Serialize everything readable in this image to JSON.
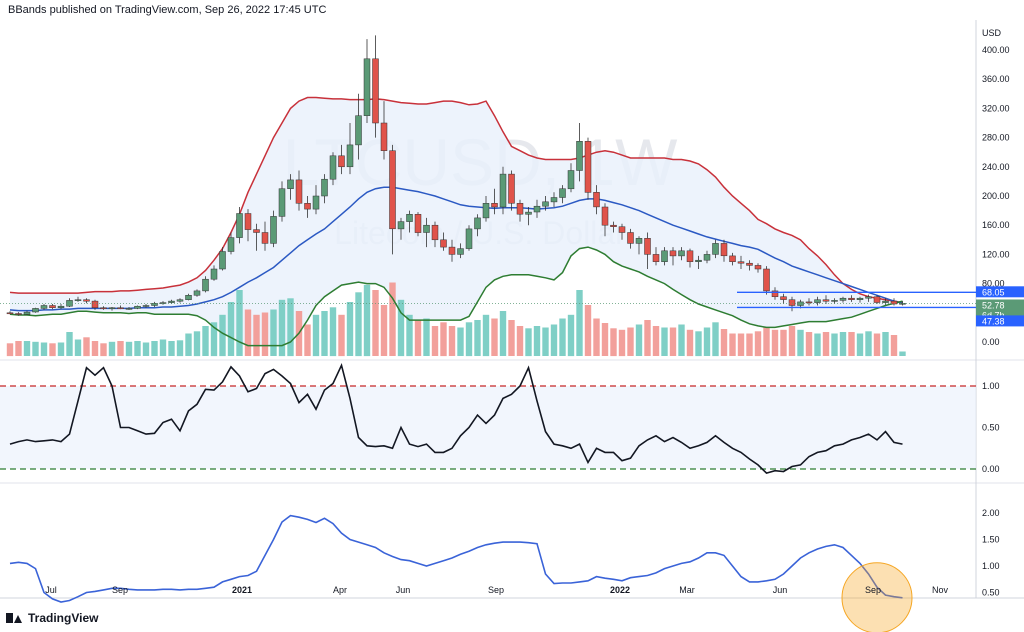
{
  "header": {
    "attribution": "BBands published on TradingView.com, Sep 26, 2022 17:45 UTC"
  },
  "footer": {
    "brand": "TradingView",
    "logo_icon": "tradingview-logo-icon"
  },
  "colors": {
    "bull": "#5b9a76",
    "bear": "#e0534a",
    "upper_band": "#c8313a",
    "lower_band": "#2e7d32",
    "basis": "#2b59c3",
    "vol_up": "#7fcfc6",
    "vol_down": "#f2a09b",
    "band_fill": "#e9f0fb",
    "level_red": "#c62828",
    "level_green": "#2e7d32",
    "osc": "#3a63d8",
    "price_box": "#2962ff"
  },
  "chart_data": {
    "type": "candlestick",
    "symbol_watermark": "LTCUSD, 1W",
    "name_watermark": "Litecoin / U.S. Dollar",
    "price_axis": {
      "unit": "USD",
      "ticks": [
        "400.00",
        "360.00",
        "320.00",
        "280.00",
        "240.00",
        "200.00",
        "160.00",
        "120.00",
        "80.00",
        "40.00",
        "0.00"
      ]
    },
    "price_labels": [
      {
        "text": "68.05",
        "kind": "box-high"
      },
      {
        "text": "52.78",
        "kind": "last-price"
      },
      {
        "text": "6d 7h",
        "kind": "countdown"
      },
      {
        "text": "47.38",
        "kind": "box-low"
      }
    ],
    "x_axis_labels": [
      "Jul",
      "Sep",
      "2021",
      "Apr",
      "Jun",
      "Sep",
      "2022",
      "Mar",
      "Jun",
      "Sep",
      "Nov"
    ],
    "candles_ohlc": [
      [
        40,
        42,
        38,
        39
      ],
      [
        39,
        41,
        36,
        38
      ],
      [
        38,
        43,
        37,
        41
      ],
      [
        41,
        47,
        40,
        46
      ],
      [
        46,
        52,
        44,
        50
      ],
      [
        50,
        52,
        45,
        47
      ],
      [
        47,
        52,
        45,
        49
      ],
      [
        49,
        60,
        48,
        57
      ],
      [
        57,
        62,
        55,
        58
      ],
      [
        58,
        60,
        53,
        56
      ],
      [
        56,
        58,
        44,
        47
      ],
      [
        47,
        49,
        44,
        46
      ],
      [
        46,
        48,
        43,
        47
      ],
      [
        47,
        50,
        45,
        46
      ],
      [
        46,
        48,
        44,
        46
      ],
      [
        46,
        50,
        45,
        49
      ],
      [
        49,
        52,
        47,
        50
      ],
      [
        50,
        55,
        48,
        53
      ],
      [
        53,
        56,
        51,
        54
      ],
      [
        54,
        58,
        52,
        56
      ],
      [
        56,
        60,
        54,
        58
      ],
      [
        58,
        66,
        57,
        64
      ],
      [
        64,
        72,
        62,
        70
      ],
      [
        70,
        90,
        68,
        86
      ],
      [
        86,
        105,
        84,
        100
      ],
      [
        100,
        130,
        98,
        124
      ],
      [
        124,
        150,
        120,
        143
      ],
      [
        143,
        185,
        135,
        176
      ],
      [
        176,
        182,
        138,
        154
      ],
      [
        154,
        162,
        125,
        150
      ],
      [
        150,
        165,
        125,
        135
      ],
      [
        135,
        180,
        130,
        172
      ],
      [
        172,
        220,
        165,
        210
      ],
      [
        210,
        230,
        195,
        222
      ],
      [
        222,
        235,
        180,
        190
      ],
      [
        190,
        200,
        170,
        182
      ],
      [
        182,
        215,
        175,
        200
      ],
      [
        200,
        230,
        190,
        223
      ],
      [
        223,
        260,
        215,
        255
      ],
      [
        255,
        270,
        230,
        240
      ],
      [
        240,
        300,
        230,
        270
      ],
      [
        270,
        340,
        250,
        310
      ],
      [
        310,
        415,
        300,
        388
      ],
      [
        388,
        420,
        280,
        300
      ],
      [
        300,
        330,
        250,
        262
      ],
      [
        262,
        270,
        120,
        155
      ],
      [
        155,
        170,
        140,
        165
      ],
      [
        165,
        180,
        150,
        175
      ],
      [
        175,
        178,
        145,
        150
      ],
      [
        150,
        170,
        130,
        160
      ],
      [
        160,
        165,
        130,
        140
      ],
      [
        140,
        150,
        125,
        130
      ],
      [
        130,
        140,
        110,
        120
      ],
      [
        120,
        135,
        115,
        128
      ],
      [
        128,
        160,
        125,
        155
      ],
      [
        155,
        175,
        145,
        170
      ],
      [
        170,
        200,
        165,
        190
      ],
      [
        190,
        210,
        175,
        185
      ],
      [
        185,
        240,
        175,
        230
      ],
      [
        230,
        235,
        180,
        190
      ],
      [
        190,
        195,
        165,
        175
      ],
      [
        175,
        185,
        160,
        178
      ],
      [
        178,
        195,
        170,
        186
      ],
      [
        186,
        200,
        180,
        192
      ],
      [
        192,
        205,
        185,
        198
      ],
      [
        198,
        215,
        190,
        210
      ],
      [
        210,
        245,
        205,
        235
      ],
      [
        235,
        300,
        220,
        275
      ],
      [
        275,
        280,
        195,
        205
      ],
      [
        205,
        215,
        175,
        185
      ],
      [
        185,
        190,
        145,
        160
      ],
      [
        160,
        165,
        150,
        158
      ],
      [
        158,
        162,
        140,
        150
      ],
      [
        150,
        155,
        128,
        135
      ],
      [
        135,
        145,
        120,
        142
      ],
      [
        142,
        150,
        100,
        120
      ],
      [
        120,
        130,
        105,
        110
      ],
      [
        110,
        130,
        105,
        125
      ],
      [
        125,
        130,
        105,
        118
      ],
      [
        118,
        130,
        112,
        125
      ],
      [
        125,
        128,
        102,
        110
      ],
      [
        110,
        118,
        100,
        112
      ],
      [
        112,
        125,
        108,
        120
      ],
      [
        120,
        140,
        115,
        135
      ],
      [
        135,
        140,
        110,
        118
      ],
      [
        118,
        122,
        105,
        110
      ],
      [
        110,
        118,
        100,
        108
      ],
      [
        108,
        112,
        98,
        105
      ],
      [
        105,
        108,
        95,
        100
      ],
      [
        100,
        104,
        65,
        70
      ],
      [
        70,
        75,
        58,
        62
      ],
      [
        62,
        66,
        52,
        58
      ],
      [
        58,
        62,
        42,
        50
      ],
      [
        50,
        58,
        46,
        55
      ],
      [
        55,
        60,
        50,
        54
      ],
      [
        54,
        62,
        50,
        58
      ],
      [
        58,
        64,
        52,
        56
      ],
      [
        56,
        60,
        52,
        57
      ],
      [
        57,
        62,
        54,
        60
      ],
      [
        60,
        64,
        55,
        58
      ],
      [
        58,
        62,
        54,
        60
      ],
      [
        60,
        65,
        55,
        62
      ],
      [
        62,
        64,
        52,
        54
      ],
      [
        54,
        60,
        51,
        56
      ],
      [
        56,
        60,
        50,
        52
      ],
      [
        52,
        56,
        50,
        53
      ]
    ],
    "bollinger_basis": [
      44,
      43,
      43,
      43,
      44,
      44,
      45,
      45,
      46,
      46,
      46,
      46,
      46,
      46,
      46,
      47,
      47,
      47,
      48,
      48,
      49,
      50,
      52,
      55,
      58,
      62,
      68,
      75,
      82,
      88,
      95,
      102,
      112,
      122,
      132,
      140,
      148,
      155,
      165,
      175,
      185,
      196,
      205,
      210,
      212,
      212,
      210,
      208,
      206,
      203,
      200,
      196,
      192,
      188,
      186,
      185,
      184,
      183,
      184,
      184,
      184,
      183,
      182,
      183,
      184,
      186,
      190,
      194,
      196,
      196,
      194,
      191,
      188,
      184,
      180,
      175,
      170,
      165,
      160,
      156,
      152,
      148,
      144,
      141,
      138,
      135,
      132,
      130,
      127,
      121,
      115,
      110,
      104,
      100,
      96,
      92,
      88,
      84,
      80,
      76,
      72,
      68,
      64,
      60,
      56,
      53
    ],
    "bollinger_upper": [
      68,
      67,
      67,
      67,
      67,
      67,
      67,
      67,
      67,
      68,
      69,
      69,
      69,
      70,
      70,
      71,
      72,
      73,
      74,
      76,
      78,
      82,
      88,
      98,
      112,
      128,
      150,
      175,
      205,
      230,
      255,
      280,
      300,
      320,
      330,
      335,
      335,
      334,
      333,
      333,
      332,
      332,
      332,
      333,
      332,
      330,
      328,
      327,
      326,
      326,
      328,
      330,
      330,
      328,
      325,
      326,
      330,
      310,
      288,
      268,
      262,
      256,
      252,
      250,
      250,
      250,
      250,
      252,
      256,
      260,
      262,
      260,
      256,
      252,
      252,
      252,
      252,
      252,
      250,
      250,
      248,
      244,
      236,
      226,
      212,
      200,
      190,
      180,
      168,
      162,
      155,
      150,
      146,
      140,
      128,
      118,
      106,
      92,
      80,
      72,
      66,
      62,
      60,
      58,
      56,
      54
    ],
    "bollinger_lower": [
      38,
      37,
      37,
      36,
      37,
      38,
      38,
      40,
      42,
      42,
      41,
      40,
      40,
      40,
      39,
      40,
      40,
      38,
      38,
      38,
      38,
      38,
      36,
      30,
      20,
      12,
      6,
      0,
      -5,
      -5,
      -5,
      -5,
      -5,
      0,
      12,
      30,
      50,
      62,
      70,
      78,
      80,
      82,
      80,
      80,
      75,
      60,
      40,
      30,
      30,
      30,
      30,
      30,
      30,
      30,
      35,
      55,
      75,
      85,
      90,
      92,
      92,
      92,
      90,
      88,
      85,
      95,
      118,
      128,
      130,
      126,
      120,
      110,
      104,
      100,
      96,
      90,
      85,
      80,
      72,
      65,
      58,
      52,
      48,
      44,
      40,
      36,
      30,
      25,
      22,
      20,
      20,
      22,
      24,
      26,
      28,
      28,
      28,
      30,
      32,
      34,
      38,
      42,
      46,
      50,
      53,
      56
    ],
    "volume_relative": [
      0.17,
      0.2,
      0.2,
      0.19,
      0.18,
      0.17,
      0.18,
      0.32,
      0.22,
      0.25,
      0.2,
      0.17,
      0.19,
      0.2,
      0.19,
      0.2,
      0.18,
      0.2,
      0.22,
      0.2,
      0.21,
      0.3,
      0.33,
      0.4,
      0.45,
      0.55,
      0.72,
      0.88,
      0.62,
      0.55,
      0.58,
      0.62,
      0.75,
      0.77,
      0.6,
      0.42,
      0.55,
      0.6,
      0.65,
      0.55,
      0.72,
      0.85,
      0.95,
      0.88,
      0.68,
      0.98,
      0.75,
      0.55,
      0.48,
      0.5,
      0.4,
      0.45,
      0.4,
      0.38,
      0.45,
      0.48,
      0.55,
      0.5,
      0.6,
      0.48,
      0.4,
      0.37,
      0.4,
      0.38,
      0.42,
      0.5,
      0.55,
      0.88,
      0.68,
      0.5,
      0.44,
      0.37,
      0.35,
      0.38,
      0.42,
      0.48,
      0.4,
      0.38,
      0.38,
      0.42,
      0.35,
      0.33,
      0.38,
      0.45,
      0.36,
      0.3,
      0.3,
      0.3,
      0.33,
      0.38,
      0.35,
      0.35,
      0.4,
      0.35,
      0.32,
      0.3,
      0.32,
      0.3,
      0.32,
      0.32,
      0.3,
      0.33,
      0.3,
      0.32,
      0.28,
      0.06
    ],
    "percent_b": {
      "axis_ticks": [
        "1.00",
        "0.50",
        "0.00"
      ],
      "levels": [
        1.0,
        0.0
      ],
      "values": [
        0.3,
        0.33,
        0.35,
        0.33,
        0.34,
        0.35,
        0.33,
        0.42,
        0.82,
        1.22,
        1.13,
        1.22,
        1.0,
        0.5,
        0.5,
        0.46,
        0.42,
        0.43,
        0.56,
        0.6,
        0.46,
        0.7,
        0.78,
        0.96,
        0.95,
        1.05,
        1.23,
        1.12,
        0.93,
        0.97,
        1.15,
        1.2,
        1.12,
        1.03,
        0.8,
        0.9,
        0.72,
        0.95,
        1.03,
        1.25,
        0.85,
        0.38,
        0.28,
        0.27,
        0.28,
        0.25,
        0.5,
        0.3,
        0.27,
        0.3,
        0.2,
        0.2,
        0.25,
        0.4,
        0.5,
        0.65,
        0.55,
        0.65,
        0.85,
        0.9,
        1.0,
        1.22,
        0.82,
        0.45,
        0.3,
        0.28,
        0.25,
        0.3,
        0.08,
        0.25,
        0.2,
        0.2,
        0.1,
        0.13,
        0.28,
        0.35,
        0.4,
        0.33,
        0.38,
        0.32,
        0.25,
        0.28,
        0.32,
        0.4,
        0.32,
        0.25,
        0.2,
        0.12,
        0.05,
        -0.05,
        -0.02,
        -0.03,
        0.03,
        0.05,
        0.15,
        0.2,
        0.22,
        0.28,
        0.3,
        0.35,
        0.38,
        0.42,
        0.35,
        0.45,
        0.32,
        0.3
      ]
    },
    "bandwidth": {
      "axis_ticks": [
        "2.00",
        "1.50",
        "1.00",
        "0.50"
      ],
      "values": [
        1.05,
        1.07,
        1.05,
        0.95,
        0.5,
        0.38,
        0.32,
        0.35,
        0.42,
        0.5,
        0.52,
        0.55,
        0.58,
        0.58,
        0.56,
        0.55,
        0.55,
        0.55,
        0.56,
        0.56,
        0.55,
        0.56,
        0.56,
        0.58,
        0.6,
        0.7,
        0.75,
        0.8,
        0.82,
        0.9,
        1.2,
        1.5,
        1.83,
        1.95,
        1.92,
        1.88,
        1.82,
        1.9,
        1.8,
        1.62,
        1.5,
        1.45,
        1.4,
        1.35,
        1.25,
        1.18,
        1.12,
        1.1,
        1.05,
        1.0,
        1.05,
        1.1,
        1.15,
        1.22,
        1.28,
        1.35,
        1.4,
        1.43,
        1.45,
        1.45,
        1.45,
        1.44,
        1.42,
        0.85,
        0.67,
        0.68,
        0.68,
        0.7,
        0.72,
        0.8,
        0.77,
        0.75,
        0.72,
        0.78,
        0.8,
        0.82,
        0.87,
        0.95,
        1.0,
        1.05,
        1.08,
        1.15,
        1.25,
        1.25,
        1.2,
        1.0,
        0.8,
        0.7,
        0.7,
        0.72,
        0.75,
        0.85,
        1.0,
        1.15,
        1.25,
        1.32,
        1.37,
        1.4,
        1.35,
        1.2,
        1.05,
        0.85,
        0.6,
        0.45,
        0.42,
        0.4
      ]
    },
    "highlight": {
      "pane": "bandwidth",
      "shape": "circle",
      "color": "#f5a623",
      "target_index": 105
    }
  }
}
